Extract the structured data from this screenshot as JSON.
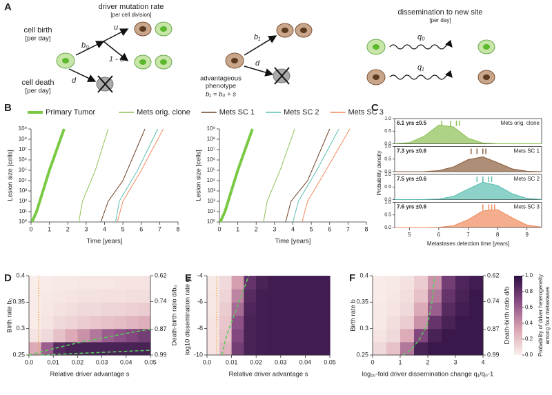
{
  "diagram": {
    "panel": "A",
    "mutation_title": "driver mutation rate",
    "mutation_unit": "[per cell division]",
    "birth_title": "cell birth",
    "birth_unit": "[per day]",
    "death_title": "cell death",
    "death_unit": "[per day]",
    "b0": "b₀",
    "u": "u",
    "one_minus_u": "1 - u",
    "d_left": "d",
    "b1": "b₁",
    "d_mid": "d",
    "phenotype_1": "advantageous",
    "phenotype_2": "phenotype",
    "phenotype_eq": "b₁ = b₀ + s",
    "dissemination_title": "dissemination to new site",
    "dissemination_unit": "[per day]",
    "q0": "q₀",
    "q1": "q₁"
  },
  "chart_data": [
    {
      "type": "line",
      "panel": "B",
      "xlabel": "Time [years]",
      "ylabel": "Lesion size [cells]",
      "ylog": true,
      "legend": "top",
      "xlim": [
        0,
        8
      ],
      "xticks": [
        0,
        1,
        2,
        3,
        4,
        5,
        6,
        7,
        8
      ],
      "ylim": [
        1,
        1000000000
      ],
      "yticks": [
        {
          "value": 1,
          "label": "10⁰"
        },
        {
          "value": 10,
          "label": "10¹"
        },
        {
          "value": 100,
          "label": "10²"
        },
        {
          "value": 1000,
          "label": "10³"
        },
        {
          "value": 10000,
          "label": "10⁴"
        },
        {
          "value": 100000,
          "label": "10⁵"
        },
        {
          "value": 1000000,
          "label": "10⁶"
        },
        {
          "value": 10000000,
          "label": "10⁷"
        },
        {
          "value": 100000000,
          "label": "10⁸"
        },
        {
          "value": 1000000000,
          "label": "10⁹"
        }
      ],
      "series": [
        {
          "name": "Primary Tumor",
          "color": "#7ac943",
          "width": 4,
          "x": [
            0.05,
            0.3,
            1,
            1.8
          ],
          "values": [
            1,
            10,
            100000,
            1000000000
          ]
        },
        {
          "name": "Mets orig. clone",
          "color": "#8cc152",
          "width": 1,
          "x": [
            2.6,
            2.8,
            3.5,
            4.2
          ],
          "values": [
            1,
            100,
            100000,
            1000000000
          ]
        },
        {
          "name": "Mets SC 1",
          "color": "#6b4226",
          "width": 1,
          "x": [
            3.8,
            4.2,
            5,
            6.2
          ],
          "values": [
            1,
            100,
            10000,
            1000000000
          ]
        },
        {
          "name": "Mets SC 2",
          "color": "#5bbfb0",
          "width": 1,
          "x": [
            4.6,
            4.8,
            5.8,
            6.9
          ],
          "values": [
            1,
            100,
            100000,
            1000000000
          ]
        },
        {
          "name": "Mets SC 3",
          "color": "#f08a5d",
          "width": 1,
          "x": [
            4.7,
            5,
            6,
            7.2
          ],
          "values": [
            1,
            100,
            100000,
            1000000000
          ]
        }
      ]
    },
    {
      "type": "line",
      "xlabel": "Time [years]",
      "ylabel": "Lesion size [cells]",
      "ylog": true,
      "xlim": [
        0,
        8
      ],
      "xticks": [
        0,
        1,
        2,
        3,
        4,
        5,
        6,
        7,
        8
      ],
      "ylim": [
        1,
        1000000000
      ],
      "yticks": [
        {
          "value": 1,
          "label": "10⁰"
        },
        {
          "value": 10,
          "label": "10¹"
        },
        {
          "value": 100,
          "label": "10²"
        },
        {
          "value": 1000,
          "label": "10³"
        },
        {
          "value": 10000,
          "label": "10⁴"
        },
        {
          "value": 100000,
          "label": "10⁵"
        },
        {
          "value": 1000000,
          "label": "10⁶"
        },
        {
          "value": 10000000,
          "label": "10⁷"
        },
        {
          "value": 100000000,
          "label": "10⁸"
        },
        {
          "value": 1000000000,
          "label": "10⁹"
        }
      ],
      "series": [
        {
          "color": "#7ac943",
          "width": 4,
          "x": [
            0.05,
            0.3,
            1,
            1.8
          ],
          "values": [
            1,
            10,
            100000,
            1000000000
          ]
        },
        {
          "color": "#8cc152",
          "width": 1,
          "x": [
            2.4,
            2.6,
            3.3,
            4.1
          ],
          "values": [
            1,
            100,
            100000,
            1000000000
          ]
        },
        {
          "color": "#6b4226",
          "width": 1,
          "x": [
            3.6,
            3.9,
            4.8,
            6
          ],
          "values": [
            1,
            100,
            10000,
            1000000000
          ]
        },
        {
          "color": "#5bbfb0",
          "width": 1,
          "x": [
            4,
            4.3,
            5.3,
            6.5
          ],
          "values": [
            1,
            100,
            100000,
            1000000000
          ]
        },
        {
          "color": "#f08a5d",
          "width": 1,
          "x": [
            4.5,
            4.8,
            5.8,
            7.1
          ],
          "values": [
            1,
            100,
            100000,
            1000000000
          ]
        }
      ]
    },
    {
      "type": "ridge",
      "panel": "C",
      "xlabel": "Metastases detection time [years]",
      "ylabel": "Probability density",
      "xlim": [
        4.5,
        9.5
      ],
      "xticks": [
        5,
        6,
        7,
        8,
        9
      ],
      "ylim": [
        0,
        1
      ],
      "yticks": [
        {
          "value": 0,
          "label": "0.0"
        },
        {
          "value": 0.5,
          "label": "0.5"
        },
        {
          "value": 1,
          "label": "1.0"
        }
      ],
      "panels": [
        {
          "name": "Mets orig. clone",
          "stat": "6.1 yrs ±0.5",
          "color": "#8cc152",
          "x": [
            4.5,
            5,
            5.5,
            6,
            6.5,
            7,
            7.5,
            8,
            8.5,
            9,
            9.5
          ],
          "values": [
            0.0025,
            0.045,
            0.3,
            0.74,
            0.67,
            0.22,
            0.027,
            0.001,
            0,
            0,
            0
          ],
          "detections": [
            6.1,
            6.4,
            6.6,
            6.7
          ]
        },
        {
          "name": "Mets SC 1",
          "stat": "7.3 yrs ±0.6",
          "color": "#8b5e3c",
          "x": [
            4.5,
            5,
            5.5,
            6,
            6.5,
            7,
            7.5,
            8,
            8.5,
            9,
            9.5
          ],
          "values": [
            0,
            0,
            0.004,
            0.04,
            0.19,
            0.48,
            0.59,
            0.36,
            0.11,
            0.017,
            0.001
          ],
          "detections": [
            7.1,
            7.3,
            7.5,
            7.6
          ]
        },
        {
          "name": "Mets SC 2",
          "stat": "7.5 yrs ±0.6",
          "color": "#5bbfb0",
          "x": [
            4.5,
            5,
            5.5,
            6,
            6.5,
            7,
            7.5,
            8,
            8.5,
            9,
            9.5
          ],
          "values": [
            0,
            0,
            0.002,
            0.02,
            0.13,
            0.42,
            0.69,
            0.56,
            0.23,
            0.046,
            0.005
          ],
          "detections": [
            7.3,
            7.5,
            7.7,
            7.8
          ]
        },
        {
          "name": "Mets SC 3",
          "stat": "7.6 yrs ±0.6",
          "color": "#f08a5d",
          "x": [
            4.5,
            5,
            5.5,
            6,
            6.5,
            7,
            7.5,
            8,
            8.5,
            9,
            9.5
          ],
          "values": [
            0,
            0,
            0,
            0.008,
            0.07,
            0.31,
            0.66,
            0.71,
            0.38,
            0.1,
            0.014
          ],
          "detections": [
            7.5,
            7.7,
            7.8,
            7.9
          ]
        }
      ]
    },
    {
      "type": "heatmap",
      "panel": "D",
      "xlabel": "Relative driver advantage s",
      "ylabel": "Birth rate b₀",
      "y2label": "Death-birth ratio d/b₀",
      "xlim": [
        0,
        0.05
      ],
      "xticks": [
        {
          "value": 0,
          "label": "0.0"
        },
        0.01,
        0.02,
        0.03,
        0.04,
        0.05
      ],
      "ylim": [
        0.25,
        0.4
      ],
      "yticks": [
        0.25,
        0.3,
        0.35,
        0.4
      ],
      "y2lim": [
        0.99,
        0.62
      ],
      "y2ticks": [
        0.62,
        0.74,
        0.87,
        0.99
      ],
      "colormap": [
        "#faf0eb",
        "#d9a3b1",
        "#8a4d85",
        "#2d0f42"
      ],
      "z": [
        [
          0.3,
          0.6,
          0.85,
          0.9,
          0.9,
          0.9,
          0.9,
          0.9,
          0.9,
          0.9
        ],
        [
          0.05,
          0.1,
          0.2,
          0.3,
          0.4,
          0.5,
          0.6,
          0.65,
          0.7,
          0.75
        ],
        [
          0.02,
          0.05,
          0.1,
          0.12,
          0.15,
          0.18,
          0.2,
          0.22,
          0.25,
          0.28
        ],
        [
          0.02,
          0.04,
          0.06,
          0.08,
          0.1,
          0.1,
          0.12,
          0.12,
          0.14,
          0.15
        ],
        [
          0.02,
          0.03,
          0.04,
          0.05,
          0.06,
          0.06,
          0.07,
          0.07,
          0.08,
          0.08
        ],
        [
          0.01,
          0.02,
          0.03,
          0.03,
          0.04,
          0.04,
          0.04,
          0.05,
          0.05,
          0.05
        ]
      ],
      "vline": 0.004,
      "vline_color": "#f0a030",
      "contours": [
        {
          "color": "#5cc85c",
          "x": [
            0,
            0.01,
            0.02,
            0.03,
            0.04,
            0.05
          ],
          "values": [
            0.25,
            0.262,
            0.273,
            0.282,
            0.291,
            0.299
          ]
        },
        {
          "color": "#5cc85c",
          "x": [
            0.005,
            0.02,
            0.035,
            0.05
          ],
          "values": [
            0.25,
            0.253,
            0.256,
            0.259
          ]
        }
      ]
    },
    {
      "type": "heatmap",
      "panel": "E",
      "xlabel": "Relative driver advantage s",
      "ylabel": "log10 dissemination rate q₀",
      "xlim": [
        0,
        0.05
      ],
      "xticks": [
        {
          "value": 0,
          "label": "0.0"
        },
        0.01,
        0.02,
        0.03,
        0.04,
        0.05
      ],
      "ylim": [
        -10,
        -4
      ],
      "yticks": [
        -10,
        -8,
        -6,
        -4
      ],
      "colormap": [
        "#faf0eb",
        "#d9a3b1",
        "#8a4d85",
        "#2d0f42"
      ],
      "z": [
        [
          0.05,
          0.25,
          0.75,
          0.9,
          0.92,
          0.93,
          0.93,
          0.93,
          0.93,
          0.93
        ],
        [
          0.05,
          0.2,
          0.7,
          0.9,
          0.92,
          0.93,
          0.93,
          0.93,
          0.93,
          0.93
        ],
        [
          0.05,
          0.18,
          0.65,
          0.9,
          0.92,
          0.93,
          0.93,
          0.93,
          0.93,
          0.93
        ],
        [
          0.04,
          0.15,
          0.55,
          0.88,
          0.92,
          0.93,
          0.93,
          0.93,
          0.93,
          0.93
        ],
        [
          0.04,
          0.12,
          0.45,
          0.85,
          0.92,
          0.93,
          0.93,
          0.93,
          0.93,
          0.93
        ],
        [
          0.03,
          0.1,
          0.35,
          0.8,
          0.9,
          0.93,
          0.93,
          0.93,
          0.93,
          0.93
        ]
      ],
      "vline": 0.004,
      "vline_color": "#f0a030",
      "contours": [
        {
          "color": "#5cc85c",
          "x": [
            0.006,
            0.008,
            0.011,
            0.014,
            0.017
          ],
          "values": [
            -10,
            -8.5,
            -7,
            -5.5,
            -4
          ]
        }
      ]
    },
    {
      "type": "heatmap",
      "panel": "F",
      "xlabel": "log₁₀-fold driver dissemination change q₁/q₀-1",
      "ylabel": "Birth rate b",
      "y2label": "Death-birth ratio d/b",
      "xlim": [
        0,
        4
      ],
      "xticks": [
        0,
        1,
        2,
        3,
        4
      ],
      "ylim": [
        0.25,
        0.4
      ],
      "yticks": [
        0.25,
        0.3,
        0.35,
        0.4
      ],
      "y2lim": [
        0.99,
        0.62
      ],
      "y2ticks": [
        0.62,
        0.74,
        0.87,
        0.99
      ],
      "colormap": [
        "#faf0eb",
        "#d9a3b1",
        "#8a4d85",
        "#2d0f42"
      ],
      "z": [
        [
          0.1,
          0.2,
          0.5,
          0.9,
          0.95,
          0.95,
          0.95,
          0.95
        ],
        [
          0.05,
          0.1,
          0.3,
          0.7,
          0.9,
          0.95,
          0.95,
          0.95
        ],
        [
          0.03,
          0.08,
          0.15,
          0.4,
          0.8,
          0.9,
          0.95,
          0.95
        ],
        [
          0.03,
          0.05,
          0.1,
          0.3,
          0.6,
          0.85,
          0.92,
          0.95
        ],
        [
          0.02,
          0.04,
          0.08,
          0.2,
          0.5,
          0.8,
          0.9,
          0.95
        ],
        [
          0.02,
          0.03,
          0.06,
          0.15,
          0.4,
          0.75,
          0.88,
          0.93
        ]
      ],
      "contours": [
        {
          "color": "#5cc85c",
          "x": [
            1.1,
            1.4,
            1.7,
            2,
            2.15,
            2.25
          ],
          "values": [
            0.25,
            0.26,
            0.28,
            0.31,
            0.35,
            0.4
          ]
        }
      ],
      "colorbar": {
        "label": [
          "Probability of driver heterogeneity",
          "among four metastases"
        ],
        "lim": [
          0,
          1
        ],
        "ticks": [
          {
            "value": 0,
            "label": "0.0"
          },
          0.2,
          0.4,
          0.6,
          0.8,
          {
            "value": 1,
            "label": "1.0"
          }
        ]
      }
    }
  ]
}
